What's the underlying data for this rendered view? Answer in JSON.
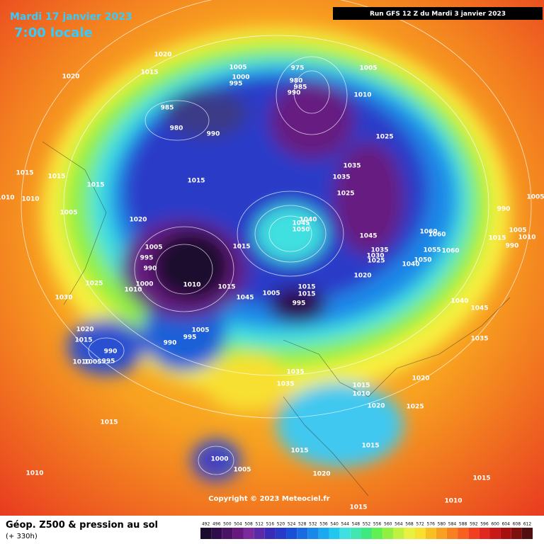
{
  "header": {
    "date": "Mardi 17 janvier 2023",
    "time": "7:00 locale",
    "run": "Run GFS 12 Z du Mardi 3 janvier 2023"
  },
  "map": {
    "copyright": "Copyright © 2023 Meteociel.fr",
    "pressure_labels": [
      "1020",
      "1020",
      "1015",
      "1005",
      "1000",
      "995",
      "975",
      "980",
      "985",
      "990",
      "1010",
      "1005",
      "985",
      "980",
      "990",
      "1025",
      "1035",
      "1035",
      "1025",
      "1015",
      "1015",
      "1015",
      "1015",
      "1010",
      "1010",
      "1005",
      "1020",
      "1040",
      "1045",
      "1050",
      "1005",
      "995",
      "990",
      "1015",
      "1045",
      "1060",
      "1060",
      "1035",
      "1030",
      "1025",
      "1040",
      "1050",
      "1055",
      "1060",
      "990",
      "1005",
      "1005",
      "1010",
      "990",
      "1015",
      "1025",
      "1000",
      "1010",
      "1010",
      "1015",
      "1045",
      "1005",
      "1015",
      "1015",
      "995",
      "1020",
      "1030",
      "1040",
      "1045",
      "1020",
      "1015",
      "990",
      "1010",
      "1005",
      "995",
      "990",
      "995",
      "1005",
      "1035",
      "1035",
      "1035",
      "1020",
      "1015",
      "1010",
      "1020",
      "1025",
      "1015",
      "1015",
      "1015",
      "1000",
      "1005",
      "1020",
      "1010",
      "1015",
      "1015",
      "1010"
    ]
  },
  "footer": {
    "title": "Géop. Z500 & pression au sol",
    "subtitle": "(+ 330h)"
  },
  "legend": {
    "values": [
      492,
      496,
      500,
      504,
      508,
      512,
      516,
      520,
      524,
      528,
      532,
      536,
      540,
      544,
      548,
      552,
      556,
      560,
      564,
      568,
      572,
      576,
      580,
      584,
      588,
      592,
      596,
      600,
      604,
      608,
      612
    ],
    "colors": [
      "#1a0a2e",
      "#2e0d4a",
      "#4a1466",
      "#661a80",
      "#7a2a99",
      "#5a2aa8",
      "#3a2ab8",
      "#2a3ac8",
      "#1a50d8",
      "#1a6ae0",
      "#1a88e8",
      "#1aa8f0",
      "#20c8f0",
      "#40e0e0",
      "#40e8b0",
      "#40e880",
      "#60f050",
      "#90f040",
      "#c0f040",
      "#e8f040",
      "#f8e030",
      "#f8c020",
      "#f8a020",
      "#f88020",
      "#f86020",
      "#f04020",
      "#e02820",
      "#c81818",
      "#a81010",
      "#801010",
      "#501010"
    ]
  }
}
